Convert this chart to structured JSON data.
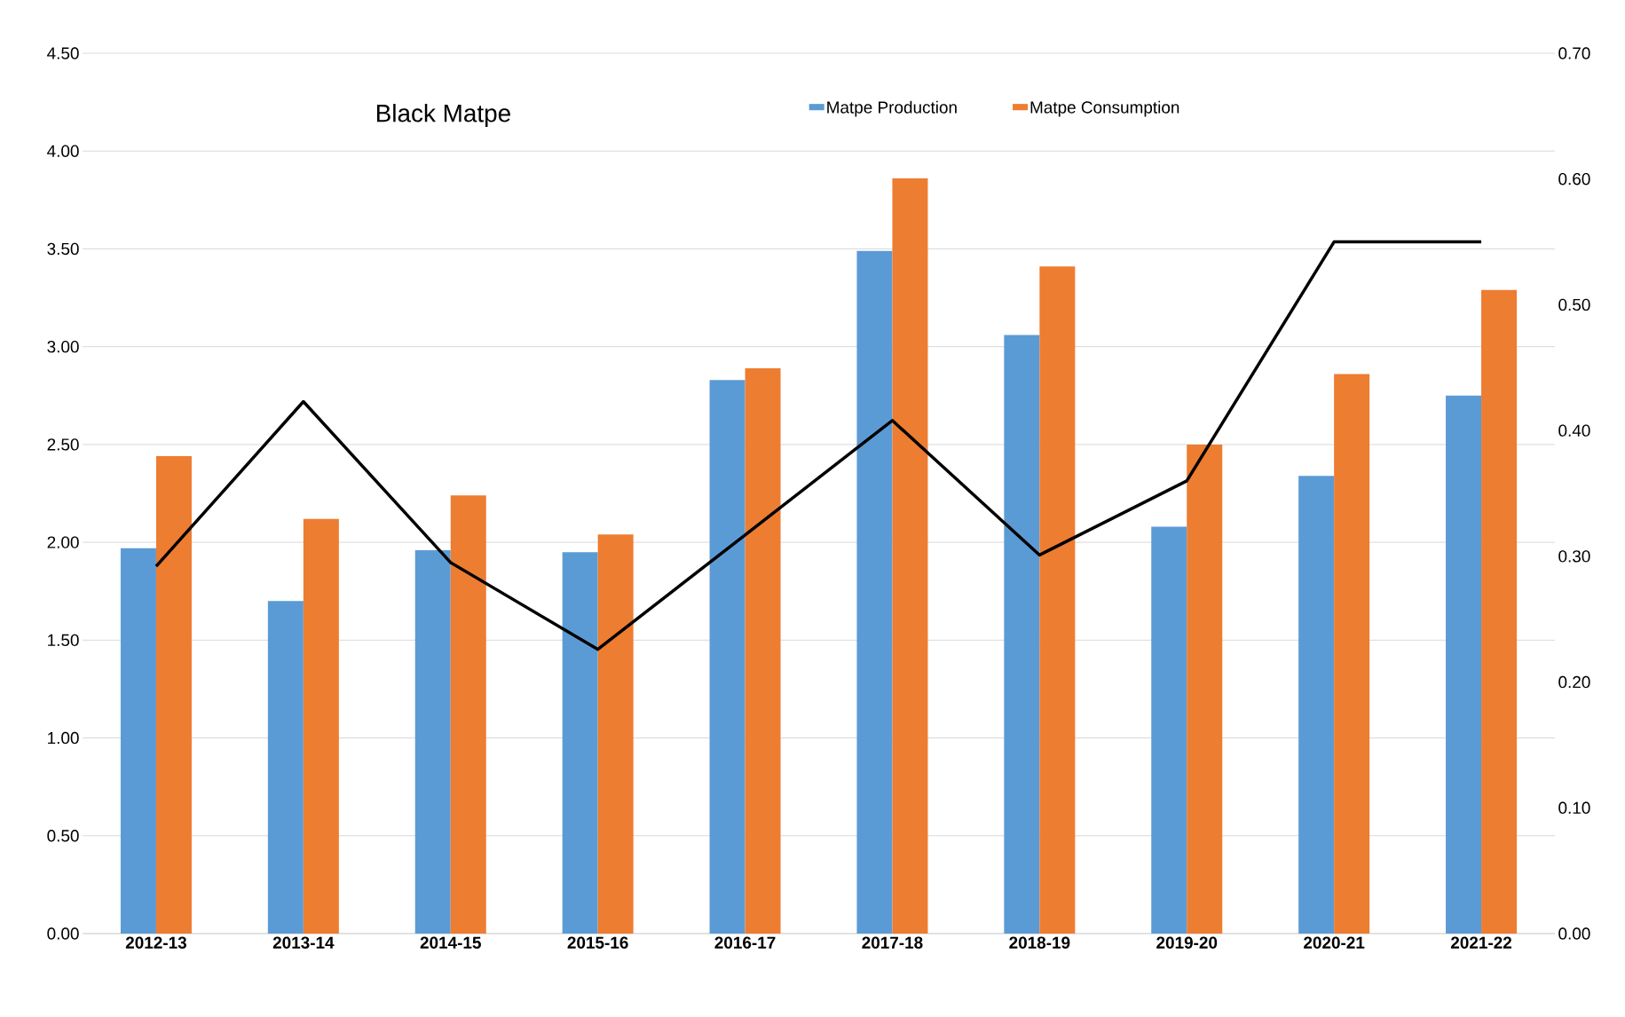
{
  "chart_data": {
    "type": "bar",
    "title": "Black Matpe",
    "categories": [
      "2012-13",
      "2013-14",
      "2014-15",
      "2015-16",
      "2016-17",
      "2017-18",
      "2018-19",
      "2019-20",
      "2020-21",
      "2021-22"
    ],
    "series": [
      {
        "name": "Matpe Production",
        "color": "#5b9bd5",
        "values": [
          1.97,
          1.7,
          1.96,
          1.95,
          2.83,
          3.49,
          3.06,
          2.08,
          2.34,
          2.75
        ]
      },
      {
        "name": "Matpe Consumption",
        "color": "#ed7d31",
        "values": [
          2.44,
          2.12,
          2.24,
          2.04,
          2.89,
          3.86,
          3.41,
          2.5,
          2.86,
          3.29
        ]
      },
      {
        "type": "line",
        "axis": "y2",
        "color": "#000000",
        "values": [
          0.292,
          0.423,
          0.295,
          0.226,
          0.317,
          0.408,
          0.301,
          0.36,
          0.55,
          0.55
        ]
      }
    ],
    "ylim": [
      0,
      4.5
    ],
    "yticks": [
      {
        "value": 0,
        "label": "0.00"
      },
      {
        "value": 0.5,
        "label": "0.50"
      },
      {
        "value": 1,
        "label": "1.00"
      },
      {
        "value": 1.5,
        "label": "1.50"
      },
      {
        "value": 2,
        "label": "2.00"
      },
      {
        "value": 2.5,
        "label": "2.50"
      },
      {
        "value": 3,
        "label": "3.00"
      },
      {
        "value": 3.5,
        "label": "3.50"
      },
      {
        "value": 4,
        "label": "4.00"
      },
      {
        "value": 4.5,
        "label": "4.50"
      }
    ],
    "y2lim": [
      0,
      0.7
    ],
    "y2ticks": [
      {
        "value": 0,
        "label": "0.00"
      },
      {
        "value": 0.1,
        "label": "0.10"
      },
      {
        "value": 0.2,
        "label": "0.20"
      },
      {
        "value": 0.3,
        "label": "0.30"
      },
      {
        "value": 0.4,
        "label": "0.40"
      },
      {
        "value": 0.5,
        "label": "0.50"
      },
      {
        "value": 0.6,
        "label": "0.60"
      },
      {
        "value": 0.7,
        "label": "0.70"
      }
    ],
    "grid": "y",
    "legend": "top"
  }
}
